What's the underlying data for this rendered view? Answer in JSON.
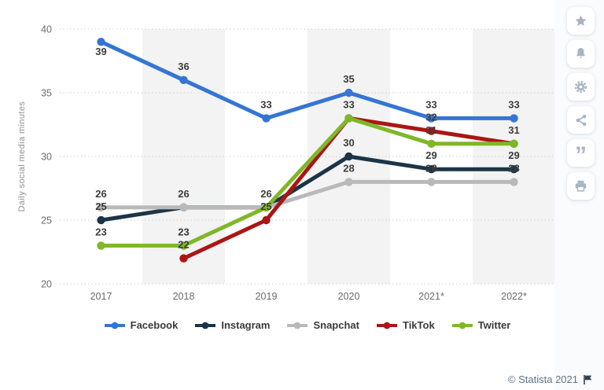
{
  "chart_data": {
    "type": "line",
    "title": "",
    "ylabel": "Daily social media minutes",
    "xlabel": "",
    "categories": [
      "2017",
      "2018",
      "2019",
      "2020",
      "2021*",
      "2022*"
    ],
    "series": [
      {
        "name": "Facebook",
        "color": "#3575d3",
        "values": [
          39,
          36,
          33,
          35,
          33,
          33
        ]
      },
      {
        "name": "Instagram",
        "color": "#1b3448",
        "values": [
          25,
          26,
          26,
          30,
          29,
          29
        ]
      },
      {
        "name": "Snapchat",
        "color": "#b9b9b9",
        "values": [
          26,
          26,
          26,
          28,
          28,
          28
        ]
      },
      {
        "name": "TikTok",
        "color": "#aa1614",
        "values": [
          null,
          22,
          25,
          33,
          32,
          31
        ]
      },
      {
        "name": "Twitter",
        "color": "#7fb728",
        "values": [
          23,
          23,
          26,
          33,
          31,
          31
        ]
      }
    ],
    "yticks": [
      20,
      25,
      30,
      35,
      40
    ],
    "ylim": [
      20,
      40
    ],
    "grid": "horizontal-dotted",
    "gridline_color": "#d2d2d2",
    "band_color": "#f3f3f3",
    "banded_categories": [
      "2018",
      "2020",
      "2022*"
    ],
    "legend_position": "bottom",
    "value_label_color": "#3d3d3d",
    "tick_label_color": "#6b6b6b"
  },
  "toolbar": {
    "icons": [
      "star-icon",
      "bell-icon",
      "gear-icon",
      "share-icon",
      "quote-icon",
      "print-icon"
    ]
  },
  "footer": {
    "copyright": "© Statista 2021",
    "flag_icon": "flag-icon"
  }
}
